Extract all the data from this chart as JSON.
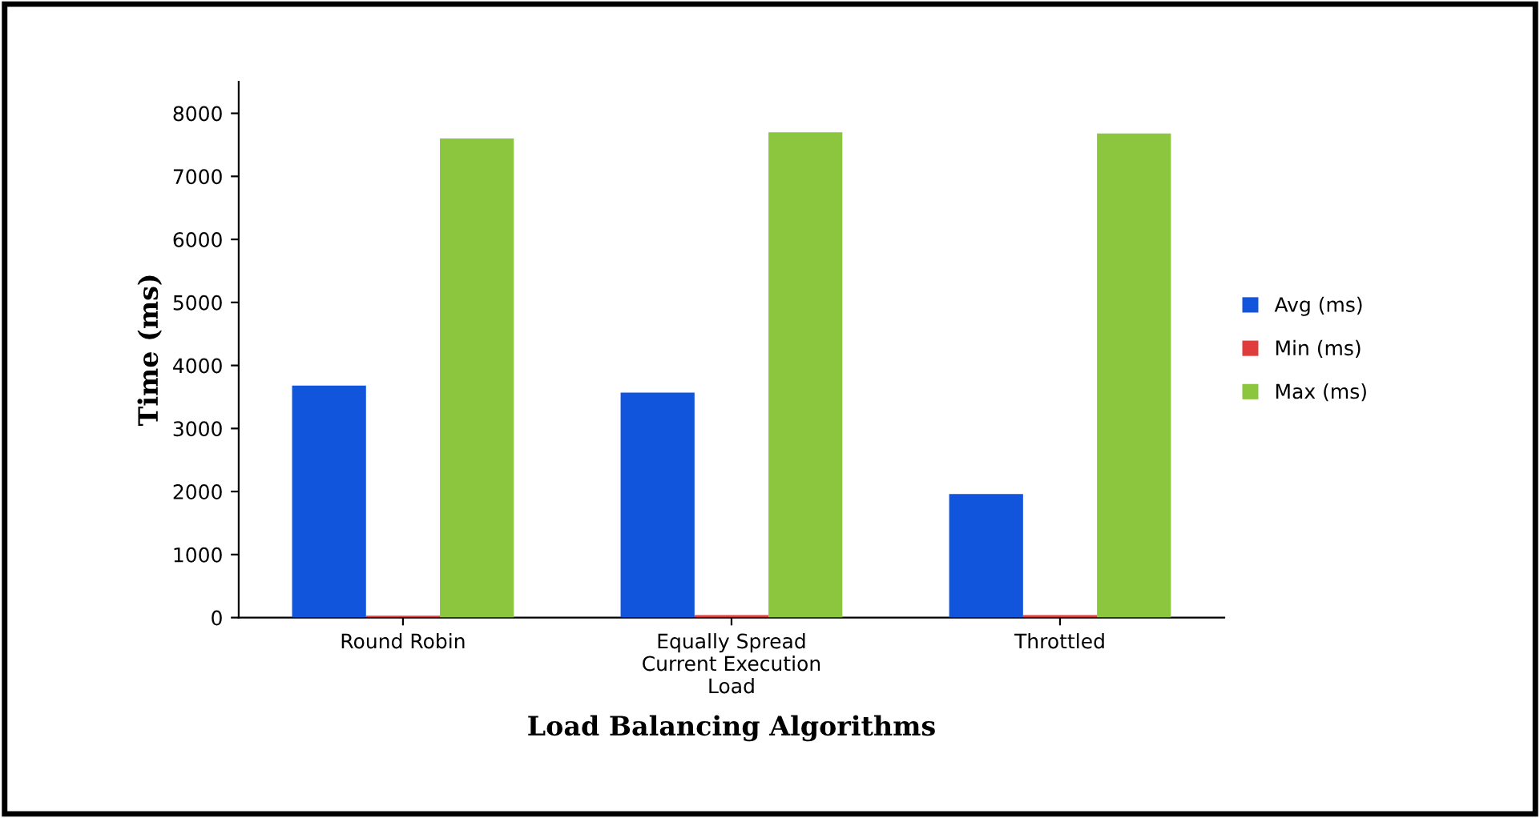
{
  "chart_data": {
    "type": "bar",
    "xlabel": "Load Balancing Algorithms",
    "ylabel": "Time (ms)",
    "categories": [
      "Round Robin",
      "Equally Spread\nCurrent Execution\nLoad",
      "Throttled"
    ],
    "series": [
      {
        "name": "Avg (ms)",
        "color": "#1155dd",
        "values": [
          3680,
          3570,
          1960
        ]
      },
      {
        "name": "Min (ms)",
        "color": "#e03c3c",
        "values": [
          30,
          40,
          40
        ]
      },
      {
        "name": "Max (ms)",
        "color": "#8cc63f",
        "values": [
          7600,
          7700,
          7680
        ]
      }
    ],
    "ylim": [
      0,
      8500
    ],
    "yticks": [
      0,
      1000,
      2000,
      3000,
      4000,
      5000,
      6000,
      7000,
      8000
    ],
    "grid": false,
    "legend": "right"
  }
}
